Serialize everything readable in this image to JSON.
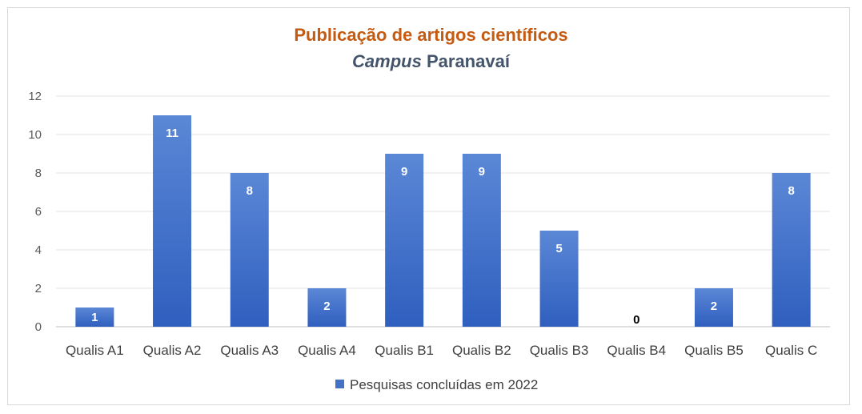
{
  "chart_data": {
    "type": "bar",
    "title": "Publicação de artigos científicos",
    "subtitle_italic": "Campus",
    "subtitle_rest": "Paranavaí",
    "categories": [
      "Qualis A1",
      "Qualis A2",
      "Qualis A3",
      "Qualis A4",
      "Qualis B1",
      "Qualis B2",
      "Qualis B3",
      "Qualis B4",
      "Qualis B5",
      "Qualis C"
    ],
    "series": [
      {
        "name": "Pesquisas concluídas em 2022",
        "values": [
          1,
          11,
          8,
          2,
          9,
          9,
          5,
          0,
          2,
          8
        ],
        "color": "#4472c4"
      }
    ],
    "ylim": [
      0,
      12
    ],
    "yticks": [
      0,
      2,
      4,
      6,
      8,
      10,
      12
    ],
    "grid": true,
    "legend": "bottom"
  }
}
